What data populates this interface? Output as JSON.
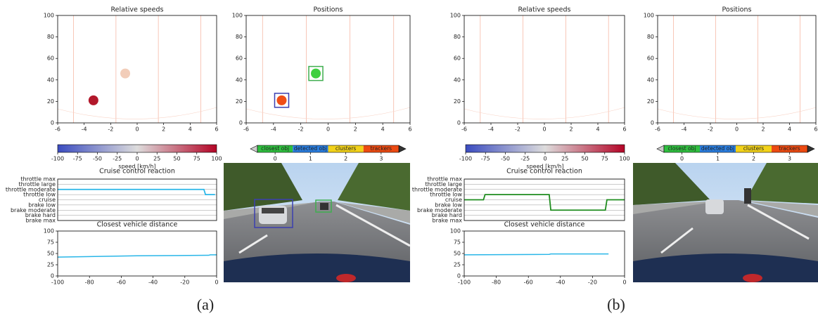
{
  "chart_data": [
    {
      "type": "scatter",
      "title": "Relative speeds",
      "xlim": [
        -6,
        6
      ],
      "ylim": [
        0,
        100
      ],
      "xticks": [
        -6,
        -4,
        -2,
        0,
        2,
        4,
        6
      ],
      "yticks": [
        0,
        20,
        40,
        60,
        80,
        100
      ],
      "lane_lines": [
        -4.8,
        -1.6,
        1.6,
        4.8
      ],
      "x": [
        -3.3,
        -0.9
      ],
      "y": [
        21,
        46
      ],
      "colors": [
        "#b2182b",
        "#f2cdb9"
      ]
    },
    {
      "type": "scatter",
      "title": "Positions",
      "xlim": [
        -6,
        6
      ],
      "ylim": [
        0,
        100
      ],
      "xticks": [
        -6,
        -4,
        -2,
        0,
        2,
        4,
        6
      ],
      "yticks": [
        0,
        20,
        40,
        60,
        80,
        100
      ],
      "lane_lines": [
        -4.8,
        -1.6,
        1.6,
        4.8
      ],
      "x": [
        -3.4,
        -0.9
      ],
      "y": [
        21,
        46
      ],
      "colors": [
        "#f04e16",
        "#3fcf3f"
      ],
      "box_colors": [
        "#3b3fb0",
        "#3fae4f"
      ]
    },
    {
      "type": "colorbar",
      "label": "speed [km/h]",
      "xlim": [
        -100,
        100
      ],
      "xticks": [
        -100,
        -75,
        -50,
        -25,
        0,
        25,
        50,
        75,
        100
      ],
      "colors": [
        "#3b4cc0",
        "#dddcdc",
        "#b40426"
      ]
    },
    {
      "type": "legendbar",
      "categories": [
        "closest obj",
        "detected obj",
        "clusters",
        "trackers"
      ],
      "colors": [
        "#2fbf3f",
        "#2a7ee0",
        "#f2d21a",
        "#ec4a12"
      ],
      "xlim": [
        -0.5,
        3.5
      ],
      "xticks": [
        0,
        1,
        2,
        3
      ]
    },
    {
      "type": "step",
      "title": "Cruise control reaction",
      "levels": [
        "throttle max",
        "throttle large",
        "throttle moderate",
        "throttle low",
        "cruise",
        "brake low",
        "brake moderate",
        "brake hard",
        "brake max"
      ],
      "xlim": [
        -100,
        0
      ],
      "x": [
        -100,
        -8,
        -7,
        -1
      ],
      "values": [
        "throttle moderate",
        "throttle moderate",
        "throttle low",
        "throttle low"
      ],
      "color": "#29b6e8"
    },
    {
      "type": "line",
      "title": "Closest vehicle distance",
      "xlim": [
        -100,
        0
      ],
      "ylim": [
        0,
        100
      ],
      "xticks": [
        -100,
        -80,
        -60,
        -40,
        -20,
        0
      ],
      "yticks": [
        0,
        25,
        50,
        75,
        100
      ],
      "x": [
        -100,
        -50,
        -5,
        -4,
        0
      ],
      "y": [
        42,
        45,
        46,
        47,
        47
      ],
      "color": "#29b6e8"
    },
    {
      "type": "scatter",
      "title": "Relative speeds",
      "xlim": [
        -6,
        6
      ],
      "ylim": [
        0,
        100
      ],
      "xticks": [
        -6,
        -4,
        -2,
        0,
        2,
        4,
        6
      ],
      "yticks": [
        0,
        20,
        40,
        60,
        80,
        100
      ],
      "lane_lines": [
        -4.8,
        -1.6,
        1.6,
        4.8
      ],
      "x": [],
      "y": [],
      "colors": []
    },
    {
      "type": "scatter",
      "title": "Positions",
      "xlim": [
        -6,
        6
      ],
      "ylim": [
        0,
        100
      ],
      "xticks": [
        -6,
        -4,
        -2,
        0,
        2,
        4,
        6
      ],
      "yticks": [
        0,
        20,
        40,
        60,
        80,
        100
      ],
      "lane_lines": [
        -4.8,
        -1.6,
        1.6,
        4.8
      ],
      "x": [],
      "y": [],
      "colors": []
    },
    {
      "type": "colorbar",
      "label": "speed [km/h]",
      "xlim": [
        -100,
        100
      ],
      "xticks": [
        -100,
        -75,
        -50,
        -25,
        0,
        25,
        50,
        75,
        100
      ],
      "colors": [
        "#3b4cc0",
        "#dddcdc",
        "#b40426"
      ]
    },
    {
      "type": "legendbar",
      "categories": [
        "closest obj",
        "detected obj",
        "clusters",
        "trackers"
      ],
      "colors": [
        "#2fbf3f",
        "#2a7ee0",
        "#f2d21a",
        "#ec4a12"
      ],
      "xlim": [
        -0.5,
        3.5
      ],
      "xticks": [
        0,
        1,
        2,
        3
      ]
    },
    {
      "type": "step",
      "title": "Cruise control reaction",
      "levels": [
        "throttle max",
        "throttle large",
        "throttle moderate",
        "throttle low",
        "cruise",
        "brake low",
        "brake moderate",
        "brake hard",
        "brake max"
      ],
      "xlim": [
        -100,
        0
      ],
      "x": [
        -100,
        -88,
        -87,
        -47,
        -46,
        -12,
        -11,
        0
      ],
      "values": [
        "cruise",
        "cruise",
        "throttle low",
        "throttle low",
        "brake moderate",
        "brake moderate",
        "cruise",
        "cruise"
      ],
      "color": "#1e8c1e"
    },
    {
      "type": "line",
      "title": "Closest vehicle distance",
      "xlim": [
        -100,
        0
      ],
      "ylim": [
        0,
        100
      ],
      "xticks": [
        -100,
        -80,
        -60,
        -40,
        -20,
        0
      ],
      "yticks": [
        0,
        25,
        50,
        75,
        100
      ],
      "x": [
        -100,
        -47,
        -46,
        -10
      ],
      "y": [
        47,
        48,
        49,
        49
      ],
      "color": "#29b6e8"
    }
  ],
  "captions": [
    "(a)",
    "(b)"
  ]
}
